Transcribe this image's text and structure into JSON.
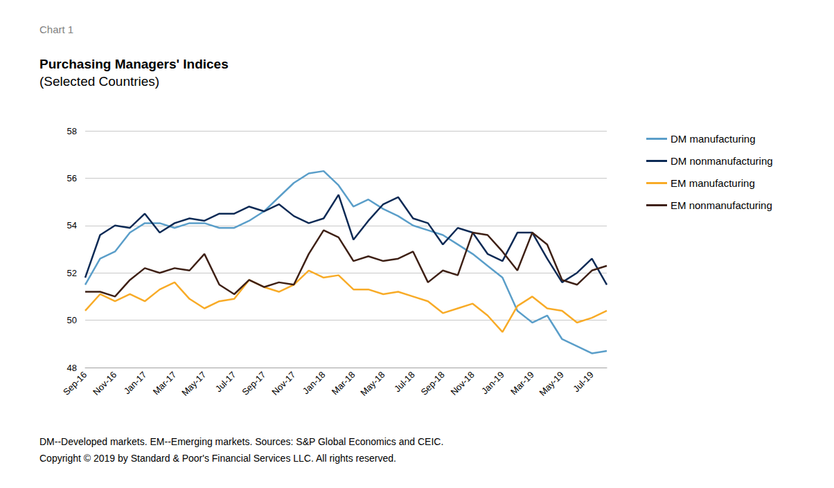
{
  "chart_data": {
    "type": "line",
    "header": "Chart 1",
    "title": "Purchasing Managers' Indices",
    "subtitle": "(Selected Countries)",
    "footnotes": [
      "DM--Developed markets. EM--Emerging markets. Sources: S&P Global Economics and CEIC.",
      "Copyright © 2019 by Standard & Poor's Financial Services LLC. All rights reserved."
    ],
    "categories": [
      "Sep-16",
      null,
      "Nov-16",
      null,
      "Jan-17",
      null,
      "Mar-17",
      null,
      "May-17",
      null,
      "Jul-17",
      null,
      "Sep-17",
      null,
      "Nov-17",
      null,
      "Jan-18",
      null,
      "Mar-18",
      null,
      "May-18",
      null,
      "Jul-18",
      null,
      "Sep-18",
      null,
      "Nov-18",
      null,
      "Jan-19",
      null,
      "Mar-19",
      null,
      "May-19",
      null,
      "Jul-19",
      null
    ],
    "series": [
      {
        "name": "DM manufacturing",
        "color": "#5a9ec9",
        "values": [
          51.5,
          52.6,
          52.9,
          53.7,
          54.1,
          54.1,
          53.9,
          54.1,
          54.1,
          53.9,
          53.9,
          54.2,
          54.6,
          55.2,
          55.8,
          56.2,
          56.3,
          55.7,
          54.8,
          55.1,
          54.7,
          54.4,
          54.0,
          53.8,
          53.6,
          53.2,
          52.8,
          52.3,
          51.8,
          50.4,
          49.9,
          50.2,
          49.2,
          48.9,
          48.6,
          48.7
        ]
      },
      {
        "name": "DM nonmanufacturing",
        "color": "#0c2a55",
        "values": [
          51.8,
          53.6,
          54.0,
          53.9,
          54.5,
          53.7,
          54.1,
          54.3,
          54.2,
          54.5,
          54.5,
          54.8,
          54.6,
          54.9,
          54.4,
          54.1,
          54.3,
          55.3,
          53.4,
          54.2,
          54.9,
          55.2,
          54.3,
          54.1,
          53.2,
          53.9,
          53.7,
          52.8,
          52.5,
          53.7,
          53.7,
          52.6,
          51.6,
          52.0,
          52.6,
          51.5
        ]
      },
      {
        "name": "EM manufacturing",
        "color": "#f8ab27",
        "values": [
          50.4,
          51.1,
          50.8,
          51.1,
          50.8,
          51.3,
          51.6,
          50.9,
          50.5,
          50.8,
          50.9,
          51.7,
          51.4,
          51.2,
          51.5,
          52.1,
          51.8,
          51.9,
          51.3,
          51.3,
          51.1,
          51.2,
          51.0,
          50.8,
          50.3,
          50.5,
          50.7,
          50.2,
          49.5,
          50.6,
          51.0,
          50.5,
          50.4,
          49.9,
          50.1,
          50.4
        ]
      },
      {
        "name": "EM nonmanufacturing",
        "color": "#3e2015",
        "values": [
          51.2,
          51.2,
          51.0,
          51.7,
          52.2,
          52.0,
          52.2,
          52.1,
          52.8,
          51.5,
          51.1,
          51.7,
          51.4,
          51.6,
          51.5,
          52.8,
          53.8,
          53.5,
          52.5,
          52.7,
          52.5,
          52.6,
          52.9,
          51.6,
          52.1,
          51.9,
          53.7,
          53.6,
          52.9,
          52.1,
          53.7,
          53.2,
          51.7,
          51.5,
          52.1,
          52.3
        ]
      }
    ],
    "ylim": [
      48,
      58
    ],
    "yticks": [
      48,
      50,
      52,
      54,
      56,
      58
    ],
    "grid": true,
    "legend": "right",
    "marker": "none",
    "line_style": "solid"
  }
}
